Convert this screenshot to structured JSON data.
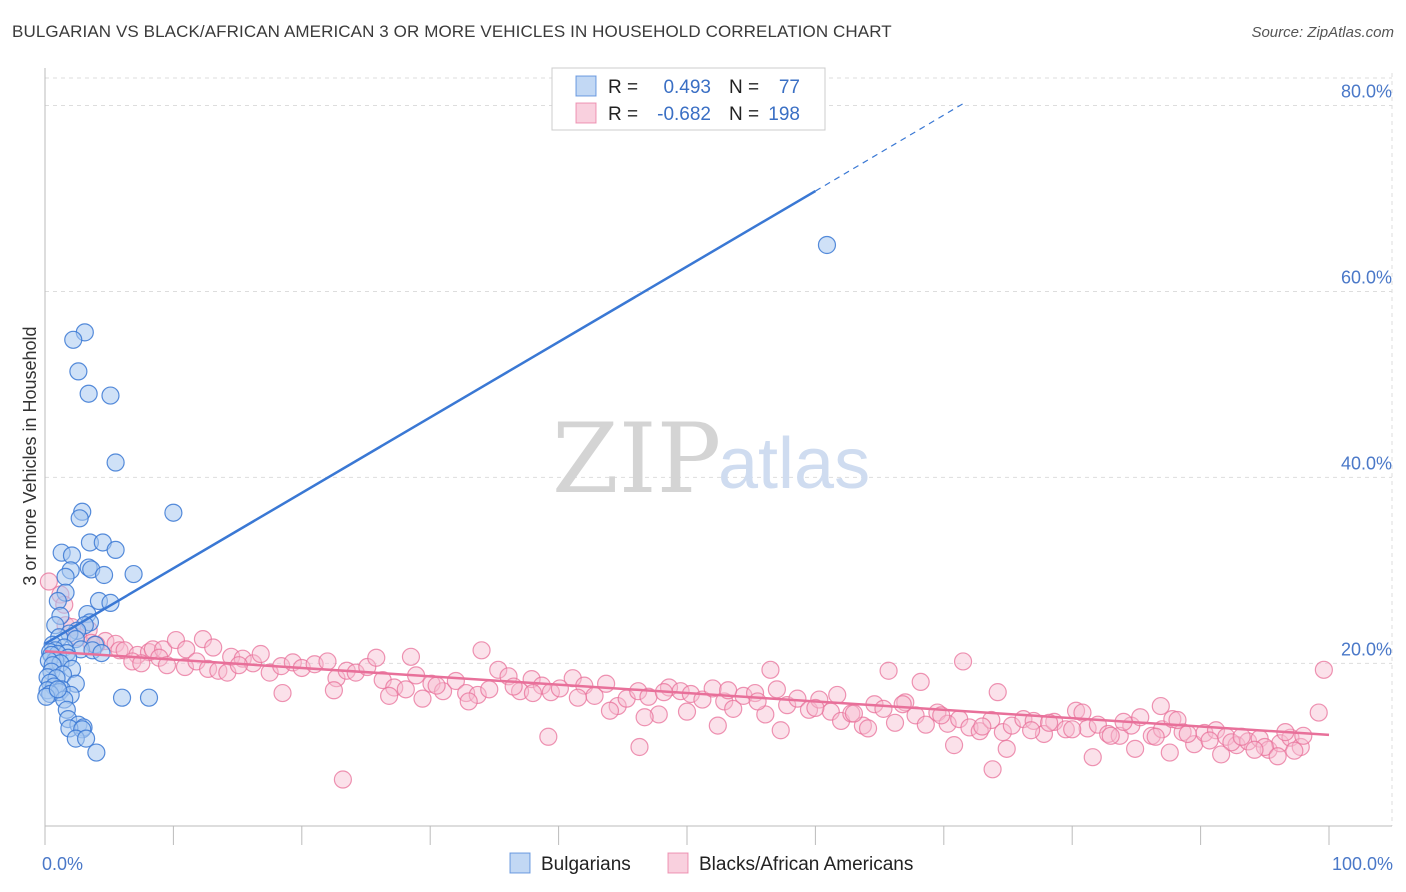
{
  "title": "BULGARIAN VS BLACK/AFRICAN AMERICAN 3 OR MORE VEHICLES IN HOUSEHOLD CORRELATION CHART",
  "source": "Source: ZipAtlas.com",
  "watermark": {
    "zip": "ZIP",
    "atlas": "atlas"
  },
  "colors": {
    "blue": "#3a78d4",
    "blue_fill": "#a8c8f0",
    "pink": "#e8709a",
    "pink_fill": "#f6bcd0",
    "grid": "#dddddd",
    "tick_text": "#4a78c8"
  },
  "legend": {
    "r_label": "R =",
    "n_label": "N =",
    "rows": [
      {
        "series": "Bulgarians",
        "r": "0.493",
        "n": "77",
        "color": "blue"
      },
      {
        "series": "Blacks/African Americans",
        "r": "-0.682",
        "n": "198",
        "color": "pink"
      }
    ]
  },
  "bottom_legend": [
    "Bulgarians",
    "Blacks/African Americans"
  ],
  "chart_data": {
    "type": "scatter",
    "title": "BULGARIAN VS BLACK/AFRICAN AMERICAN 3 OR MORE VEHICLES IN HOUSEHOLD CORRELATION CHART",
    "xlabel": "",
    "ylabel": "3 or more Vehicles in Household",
    "xlim": [
      0,
      100
    ],
    "ylim": [
      2.5,
      83.5
    ],
    "x_tick_labels": {
      "left": "0.0%",
      "right": "100.0%"
    },
    "y_ticks": [
      20,
      40,
      60,
      80
    ],
    "y_tick_labels": [
      "20.0%",
      "40.0%",
      "60.0%",
      "80.0%"
    ],
    "grid": true,
    "legend_position": "top-center",
    "series": [
      {
        "name": "Bulgarians",
        "color": "blue",
        "r": 0.493,
        "n": 77,
        "trend": {
          "x0": 0,
          "y0": 22.1,
          "x1": 60,
          "y1": 70.8,
          "dash_to_x": 71.5,
          "dash_to_y": 80.2
        },
        "points": [
          [
            3.1,
            55.6
          ],
          [
            2.2,
            54.8
          ],
          [
            2.6,
            51.4
          ],
          [
            3.4,
            49.0
          ],
          [
            5.1,
            48.8
          ],
          [
            5.5,
            41.6
          ],
          [
            10.0,
            36.2
          ],
          [
            2.9,
            36.3
          ],
          [
            2.7,
            35.6
          ],
          [
            3.5,
            33.0
          ],
          [
            4.5,
            33.0
          ],
          [
            5.5,
            32.2
          ],
          [
            1.3,
            31.9
          ],
          [
            2.1,
            31.6
          ],
          [
            3.4,
            30.3
          ],
          [
            3.6,
            30.1
          ],
          [
            2.0,
            30.0
          ],
          [
            4.6,
            29.5
          ],
          [
            6.9,
            29.6
          ],
          [
            1.6,
            29.3
          ],
          [
            1.6,
            27.6
          ],
          [
            4.2,
            26.7
          ],
          [
            5.1,
            26.5
          ],
          [
            1.0,
            26.7
          ],
          [
            1.2,
            25.1
          ],
          [
            3.3,
            25.3
          ],
          [
            0.8,
            24.1
          ],
          [
            3.5,
            24.4
          ],
          [
            3.1,
            24.1
          ],
          [
            2.5,
            23.5
          ],
          [
            1.9,
            23.2
          ],
          [
            1.1,
            22.8
          ],
          [
            2.4,
            22.6
          ],
          [
            3.9,
            22.0
          ],
          [
            0.6,
            22.0
          ],
          [
            1.5,
            21.7
          ],
          [
            2.8,
            21.5
          ],
          [
            0.8,
            21.4
          ],
          [
            0.4,
            21.2
          ],
          [
            3.7,
            21.4
          ],
          [
            1.7,
            21.1
          ],
          [
            4.4,
            21.1
          ],
          [
            1.0,
            21.0
          ],
          [
            0.5,
            20.9
          ],
          [
            1.8,
            20.6
          ],
          [
            0.8,
            20.3
          ],
          [
            0.3,
            20.3
          ],
          [
            1.2,
            20.0
          ],
          [
            0.6,
            19.8
          ],
          [
            2.1,
            19.4
          ],
          [
            0.5,
            19.1
          ],
          [
            1.4,
            18.8
          ],
          [
            0.2,
            18.5
          ],
          [
            0.9,
            18.4
          ],
          [
            0.4,
            17.9
          ],
          [
            2.4,
            17.8
          ],
          [
            0.7,
            17.5
          ],
          [
            1.3,
            17.2
          ],
          [
            0.2,
            17.1
          ],
          [
            1.1,
            16.9
          ],
          [
            2.0,
            16.6
          ],
          [
            0.4,
            16.7
          ],
          [
            1.5,
            16.1
          ],
          [
            6.0,
            16.3
          ],
          [
            8.1,
            16.3
          ],
          [
            0.1,
            16.4
          ],
          [
            1.7,
            15.0
          ],
          [
            1.8,
            14.0
          ],
          [
            2.6,
            13.4
          ],
          [
            3.0,
            13.1
          ],
          [
            1.9,
            13.0
          ],
          [
            2.9,
            12.9
          ],
          [
            2.4,
            11.9
          ],
          [
            3.2,
            11.9
          ],
          [
            4.0,
            10.4
          ],
          [
            60.9,
            65.0
          ],
          [
            1.0,
            17.2
          ]
        ]
      },
      {
        "name": "Blacks/African Americans",
        "color": "pink",
        "r": -0.682,
        "n": 198,
        "trend": {
          "x0": 0,
          "y0": 21.3,
          "x1": 100,
          "y1": 12.3
        },
        "points": [
          [
            0.3,
            28.8
          ],
          [
            1.2,
            27.4
          ],
          [
            1.5,
            26.3
          ],
          [
            1.6,
            24.1
          ],
          [
            2.1,
            23.9
          ],
          [
            3.4,
            23.6
          ],
          [
            4.7,
            22.4
          ],
          [
            5.5,
            22.1
          ],
          [
            2.6,
            22.8
          ],
          [
            3.6,
            22.2
          ],
          [
            4.0,
            22.0
          ],
          [
            5.8,
            21.4
          ],
          [
            6.2,
            21.4
          ],
          [
            7.2,
            20.9
          ],
          [
            8.1,
            21.2
          ],
          [
            8.4,
            21.5
          ],
          [
            9.2,
            21.5
          ],
          [
            10.2,
            22.5
          ],
          [
            11.0,
            21.5
          ],
          [
            12.3,
            22.6
          ],
          [
            13.1,
            21.7
          ],
          [
            14.5,
            20.7
          ],
          [
            15.4,
            20.5
          ],
          [
            16.2,
            20.0
          ],
          [
            6.8,
            20.2
          ],
          [
            7.5,
            20.0
          ],
          [
            8.9,
            20.6
          ],
          [
            9.5,
            19.8
          ],
          [
            10.9,
            19.6
          ],
          [
            11.8,
            20.2
          ],
          [
            12.7,
            19.4
          ],
          [
            13.5,
            19.2
          ],
          [
            14.2,
            19.0
          ],
          [
            15.1,
            19.8
          ],
          [
            16.8,
            21.0
          ],
          [
            17.5,
            19.0
          ],
          [
            18.4,
            19.7
          ],
          [
            19.3,
            20.1
          ],
          [
            20.0,
            19.5
          ],
          [
            21.0,
            19.9
          ],
          [
            22.0,
            20.2
          ],
          [
            22.7,
            18.4
          ],
          [
            23.5,
            19.2
          ],
          [
            24.2,
            19.0
          ],
          [
            25.1,
            19.6
          ],
          [
            25.8,
            20.6
          ],
          [
            26.3,
            18.2
          ],
          [
            27.2,
            17.4
          ],
          [
            28.1,
            17.2
          ],
          [
            28.9,
            18.7
          ],
          [
            29.4,
            16.2
          ],
          [
            30.1,
            17.8
          ],
          [
            31.0,
            17.0
          ],
          [
            32.0,
            18.1
          ],
          [
            32.8,
            16.8
          ],
          [
            33.7,
            16.6
          ],
          [
            34.6,
            17.2
          ],
          [
            35.3,
            19.3
          ],
          [
            36.1,
            18.6
          ],
          [
            37.0,
            17.0
          ],
          [
            37.9,
            18.3
          ],
          [
            38.7,
            17.6
          ],
          [
            39.4,
            16.9
          ],
          [
            40.1,
            17.3
          ],
          [
            41.1,
            18.4
          ],
          [
            42.0,
            17.6
          ],
          [
            42.8,
            16.5
          ],
          [
            43.7,
            17.8
          ],
          [
            44.6,
            15.4
          ],
          [
            45.3,
            16.2
          ],
          [
            46.2,
            17.0
          ],
          [
            47.0,
            16.4
          ],
          [
            47.8,
            14.5
          ],
          [
            48.6,
            17.4
          ],
          [
            49.5,
            17.0
          ],
          [
            50.3,
            16.7
          ],
          [
            51.2,
            16.1
          ],
          [
            52.0,
            17.3
          ],
          [
            52.9,
            15.9
          ],
          [
            53.6,
            15.1
          ],
          [
            54.4,
            16.5
          ],
          [
            55.3,
            16.8
          ],
          [
            56.1,
            14.5
          ],
          [
            57.0,
            17.2
          ],
          [
            57.8,
            15.5
          ],
          [
            58.6,
            16.2
          ],
          [
            59.5,
            15.0
          ],
          [
            60.3,
            16.1
          ],
          [
            61.2,
            14.8
          ],
          [
            62.0,
            13.8
          ],
          [
            62.8,
            14.6
          ],
          [
            63.7,
            13.3
          ],
          [
            64.6,
            15.6
          ],
          [
            65.3,
            15.1
          ],
          [
            66.2,
            13.6
          ],
          [
            67.0,
            15.8
          ],
          [
            67.8,
            14.4
          ],
          [
            68.6,
            13.4
          ],
          [
            69.5,
            14.7
          ],
          [
            70.3,
            13.5
          ],
          [
            71.2,
            14.0
          ],
          [
            72.0,
            13.1
          ],
          [
            72.8,
            12.7
          ],
          [
            73.7,
            13.9
          ],
          [
            74.6,
            12.6
          ],
          [
            75.3,
            13.3
          ],
          [
            76.2,
            14.0
          ],
          [
            77.0,
            13.8
          ],
          [
            77.8,
            12.4
          ],
          [
            78.6,
            13.7
          ],
          [
            79.5,
            12.9
          ],
          [
            80.3,
            14.9
          ],
          [
            81.2,
            13.0
          ],
          [
            82.0,
            13.4
          ],
          [
            82.8,
            12.4
          ],
          [
            83.7,
            12.2
          ],
          [
            84.6,
            13.3
          ],
          [
            85.3,
            14.2
          ],
          [
            86.2,
            12.2
          ],
          [
            87.0,
            12.9
          ],
          [
            87.8,
            14.0
          ],
          [
            88.6,
            12.6
          ],
          [
            89.5,
            11.3
          ],
          [
            90.3,
            12.5
          ],
          [
            91.2,
            12.8
          ],
          [
            92.0,
            12.1
          ],
          [
            92.8,
            11.2
          ],
          [
            93.7,
            11.6
          ],
          [
            94.6,
            11.9
          ],
          [
            95.3,
            10.7
          ],
          [
            96.2,
            11.4
          ],
          [
            97.0,
            12.0
          ],
          [
            97.8,
            11.0
          ],
          [
            18.5,
            16.8
          ],
          [
            22.5,
            17.1
          ],
          [
            26.8,
            16.5
          ],
          [
            33.0,
            15.9
          ],
          [
            36.5,
            17.5
          ],
          [
            41.5,
            16.3
          ],
          [
            44.0,
            14.9
          ],
          [
            50.0,
            14.8
          ],
          [
            55.5,
            15.9
          ],
          [
            60.0,
            15.2
          ],
          [
            63.0,
            14.6
          ],
          [
            66.8,
            15.6
          ],
          [
            69.8,
            14.4
          ],
          [
            73.0,
            13.2
          ],
          [
            76.8,
            12.8
          ],
          [
            80.0,
            12.9
          ],
          [
            83.0,
            12.2
          ],
          [
            86.5,
            12.1
          ],
          [
            89.0,
            12.4
          ],
          [
            92.4,
            11.5
          ],
          [
            95.0,
            11.0
          ],
          [
            97.3,
            10.6
          ],
          [
            28.5,
            20.7
          ],
          [
            30.5,
            17.6
          ],
          [
            34.0,
            21.4
          ],
          [
            38.0,
            16.8
          ],
          [
            46.7,
            14.2
          ],
          [
            48.2,
            16.9
          ],
          [
            53.2,
            17.1
          ],
          [
            56.5,
            19.3
          ],
          [
            61.7,
            16.6
          ],
          [
            65.7,
            19.2
          ],
          [
            68.2,
            18.0
          ],
          [
            71.5,
            20.2
          ],
          [
            74.2,
            16.9
          ],
          [
            78.2,
            13.6
          ],
          [
            80.8,
            14.7
          ],
          [
            84.0,
            13.7
          ],
          [
            86.9,
            15.4
          ],
          [
            88.2,
            13.9
          ],
          [
            90.7,
            11.7
          ],
          [
            93.2,
            12.1
          ],
          [
            96.6,
            12.6
          ],
          [
            98.0,
            12.2
          ],
          [
            99.2,
            14.7
          ],
          [
            99.6,
            19.3
          ],
          [
            39.2,
            12.1
          ],
          [
            46.3,
            11.0
          ],
          [
            52.4,
            13.3
          ],
          [
            57.3,
            12.8
          ],
          [
            64.1,
            13.0
          ],
          [
            70.8,
            11.2
          ],
          [
            74.9,
            10.8
          ],
          [
            81.6,
            9.9
          ],
          [
            84.9,
            10.8
          ],
          [
            87.6,
            10.4
          ],
          [
            91.6,
            10.2
          ],
          [
            94.2,
            10.7
          ],
          [
            96.0,
            10.0
          ],
          [
            23.2,
            7.5
          ],
          [
            73.8,
            8.6
          ]
        ]
      }
    ]
  }
}
